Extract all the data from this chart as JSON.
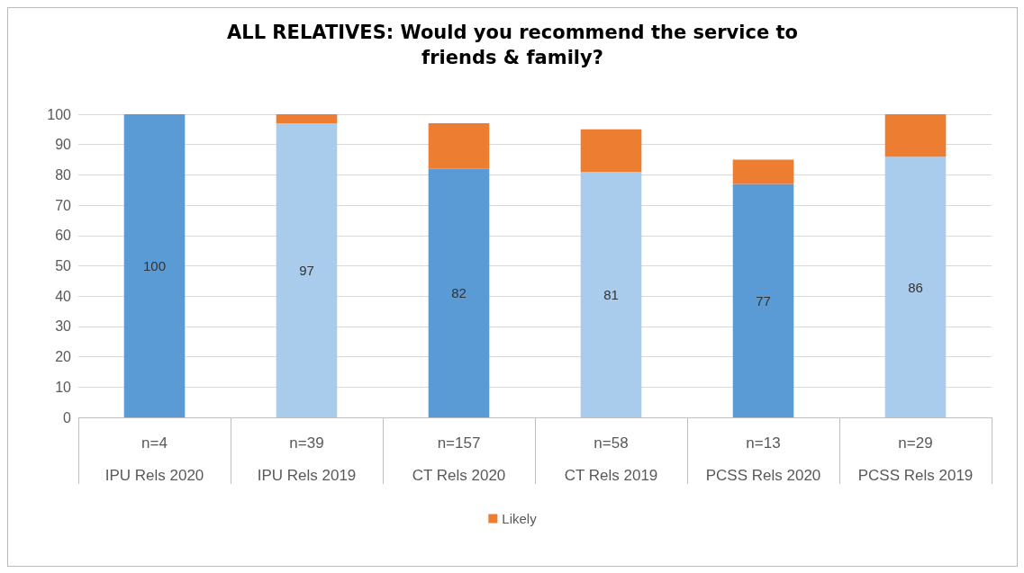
{
  "chart_data": {
    "type": "bar",
    "title": "ALL RELATIVES: Would you recommend the service to\nfriends & family?",
    "categories": [
      "n=4\nIPU Rels 2020",
      "n=39\nIPU Rels 2019",
      "n=157\nCT Rels 2020",
      "n=58\nCT Rels 2019",
      "n=13\nPCSS Rels 2020",
      "n=29\nPCSS Rels 2019"
    ],
    "stacked": true,
    "series": [
      {
        "color": "#5b9bd5",
        "colors": [
          "#5b9bd5",
          "#a9cbec",
          "#5b9bd5",
          "#a9cbec",
          "#5b9bd5",
          "#a9cbec"
        ],
        "values": [
          100,
          97,
          82,
          81,
          77,
          86
        ],
        "value_labels": [
          "100",
          "97",
          "82",
          "81",
          "77",
          "86"
        ]
      },
      {
        "name": "Likely",
        "color": "#ed7d31",
        "values": [
          0,
          3,
          15,
          14,
          8,
          14
        ]
      }
    ],
    "ylim": [
      0,
      100
    ],
    "yticks": [
      0,
      10,
      20,
      30,
      40,
      50,
      60,
      70,
      80,
      90,
      100
    ],
    "grid": "y",
    "legend": "bottom"
  }
}
